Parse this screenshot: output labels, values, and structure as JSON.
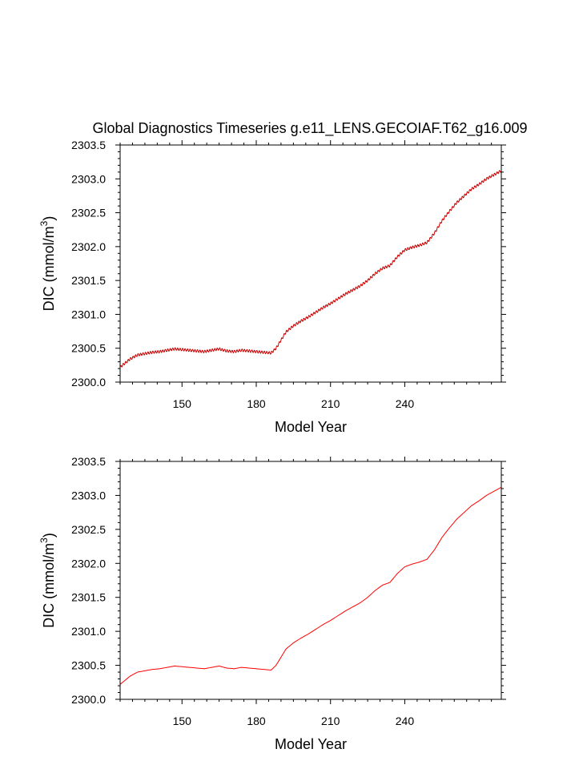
{
  "title": "Global Diagnostics Timeseries g.e11_LENS.GECOIAF.T62_g16.009",
  "colors": {
    "line": "#ff0000",
    "marker": "#000000",
    "axis": "#000000",
    "background": "#ffffff"
  },
  "chart_data": [
    {
      "type": "line",
      "title": "Global Diagnostics Timeseries g.e11_LENS.GECOIAF.T62_g16.009",
      "xlabel": "Model Year",
      "ylabel": "DIC (mmol/m3)",
      "ylabel_parts": {
        "main": "DIC (mmol/m",
        "sup": "3",
        "end": ")"
      },
      "xlim": [
        125,
        279
      ],
      "ylim": [
        2300.0,
        2303.5
      ],
      "xticks": [
        150,
        180,
        210,
        240
      ],
      "yticks": [
        "2300.0",
        "2300.5",
        "2301.0",
        "2301.5",
        "2302.0",
        "2302.5",
        "2303.0",
        "2303.5"
      ],
      "sampling": "monthly",
      "seasonal_cycle": true,
      "series": [
        {
          "name": "DIC",
          "x": [
            125,
            127,
            129,
            132,
            135,
            138,
            141,
            144,
            147,
            150,
            153,
            156,
            159,
            162,
            165,
            168,
            171,
            174,
            177,
            180,
            183,
            186,
            188,
            190,
            192,
            195,
            198,
            201,
            204,
            207,
            210,
            213,
            216,
            219,
            222,
            225,
            228,
            231,
            234,
            237,
            240,
            243,
            246,
            249,
            252,
            255,
            258,
            261,
            264,
            267,
            270,
            273,
            276,
            279
          ],
          "y": [
            2300.22,
            2300.28,
            2300.34,
            2300.4,
            2300.42,
            2300.44,
            2300.45,
            2300.47,
            2300.49,
            2300.48,
            2300.47,
            2300.46,
            2300.45,
            2300.47,
            2300.49,
            2300.46,
            2300.45,
            2300.47,
            2300.46,
            2300.45,
            2300.44,
            2300.43,
            2300.5,
            2300.62,
            2300.74,
            2300.83,
            2300.9,
            2300.96,
            2301.03,
            2301.1,
            2301.16,
            2301.23,
            2301.3,
            2301.36,
            2301.42,
            2301.5,
            2301.6,
            2301.68,
            2301.72,
            2301.85,
            2301.95,
            2301.99,
            2302.02,
            2302.06,
            2302.2,
            2302.38,
            2302.52,
            2302.65,
            2302.75,
            2302.85,
            2302.92,
            2303.0,
            2303.06,
            2303.12
          ]
        }
      ]
    },
    {
      "type": "line",
      "title": "",
      "xlabel": "Model Year",
      "ylabel": "DIC (mmol/m3)",
      "ylabel_parts": {
        "main": "DIC (mmol/m",
        "sup": "3",
        "end": ")"
      },
      "xlim": [
        125,
        279
      ],
      "ylim": [
        2300.0,
        2303.5
      ],
      "xticks": [
        150,
        180,
        210,
        240
      ],
      "yticks": [
        "2300.0",
        "2300.5",
        "2301.0",
        "2301.5",
        "2302.0",
        "2302.5",
        "2303.0",
        "2303.5"
      ],
      "sampling": "annual",
      "seasonal_cycle": false,
      "series": [
        {
          "name": "DIC",
          "x": [
            125,
            127,
            129,
            132,
            135,
            138,
            141,
            144,
            147,
            150,
            153,
            156,
            159,
            162,
            165,
            168,
            171,
            174,
            177,
            180,
            183,
            186,
            188,
            190,
            192,
            195,
            198,
            201,
            204,
            207,
            210,
            213,
            216,
            219,
            222,
            225,
            228,
            231,
            234,
            237,
            240,
            243,
            246,
            249,
            252,
            255,
            258,
            261,
            264,
            267,
            270,
            273,
            276,
            279
          ],
          "y": [
            2300.22,
            2300.28,
            2300.34,
            2300.4,
            2300.42,
            2300.44,
            2300.45,
            2300.47,
            2300.49,
            2300.48,
            2300.47,
            2300.46,
            2300.45,
            2300.47,
            2300.49,
            2300.46,
            2300.45,
            2300.47,
            2300.46,
            2300.45,
            2300.44,
            2300.43,
            2300.5,
            2300.62,
            2300.74,
            2300.83,
            2300.9,
            2300.96,
            2301.03,
            2301.1,
            2301.16,
            2301.23,
            2301.3,
            2301.36,
            2301.42,
            2301.5,
            2301.6,
            2301.68,
            2301.72,
            2301.85,
            2301.95,
            2301.99,
            2302.02,
            2302.06,
            2302.2,
            2302.38,
            2302.52,
            2302.65,
            2302.75,
            2302.85,
            2302.92,
            2303.0,
            2303.06,
            2303.12
          ]
        }
      ]
    }
  ]
}
